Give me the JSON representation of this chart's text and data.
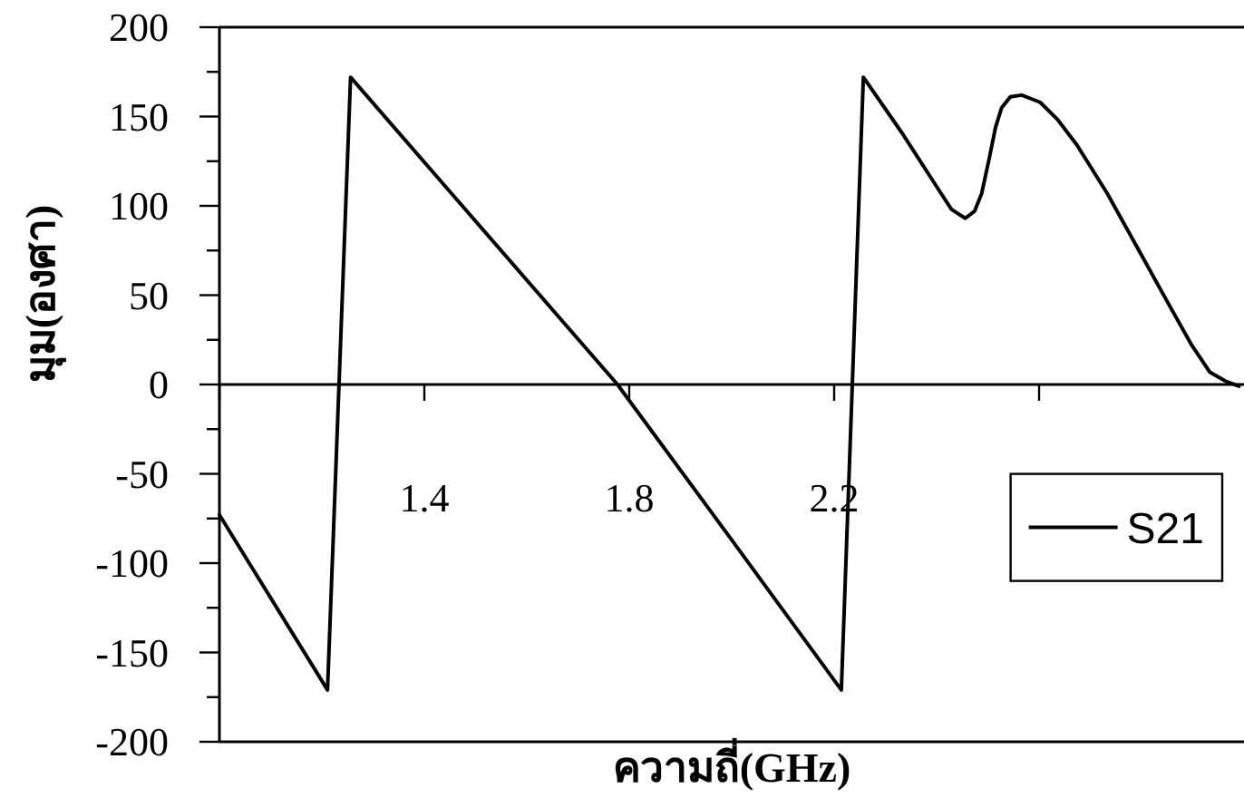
{
  "chart_data": {
    "type": "line",
    "xlabel": "ความถี่(GHz)",
    "ylabel": "มุม(องศา)",
    "xlim": [
      1.0,
      3.0
    ],
    "ylim": [
      -200,
      200
    ],
    "xticks": [
      {
        "value": 1.0,
        "label": null
      },
      1.4,
      1.8,
      2.2,
      {
        "value": 2.6,
        "label": null
      }
    ],
    "yticks": [
      -200,
      {
        "value": -175,
        "label": null
      },
      -150,
      {
        "value": -125,
        "label": null
      },
      -100,
      {
        "value": -75,
        "label": null
      },
      -50,
      {
        "value": -25,
        "label": null
      },
      0,
      {
        "value": 25,
        "label": null
      },
      50,
      {
        "value": 75,
        "label": null
      },
      100,
      {
        "value": 125,
        "label": null
      },
      150,
      {
        "value": 175,
        "label": null
      },
      200
    ],
    "legend": "right",
    "series": [
      {
        "name": "S21",
        "color": "#000000",
        "x": [
          1.0,
          1.211,
          1.256,
          1.474,
          1.777,
          2.0,
          2.214,
          2.257,
          2.332,
          2.404,
          2.429,
          2.456,
          2.474,
          2.488,
          2.503,
          2.515,
          2.527,
          2.544,
          2.566,
          2.602,
          2.637,
          2.674,
          2.733,
          2.793,
          2.851,
          2.898,
          2.933,
          2.963,
          2.99
        ],
        "values": [
          -73,
          -171,
          172,
          100,
          0,
          -87,
          -171,
          172,
          141,
          109,
          98,
          93,
          97,
          107,
          127,
          144,
          155,
          161,
          162,
          158,
          148,
          134,
          107,
          76,
          46,
          22,
          7,
          2,
          -1
        ]
      }
    ]
  }
}
